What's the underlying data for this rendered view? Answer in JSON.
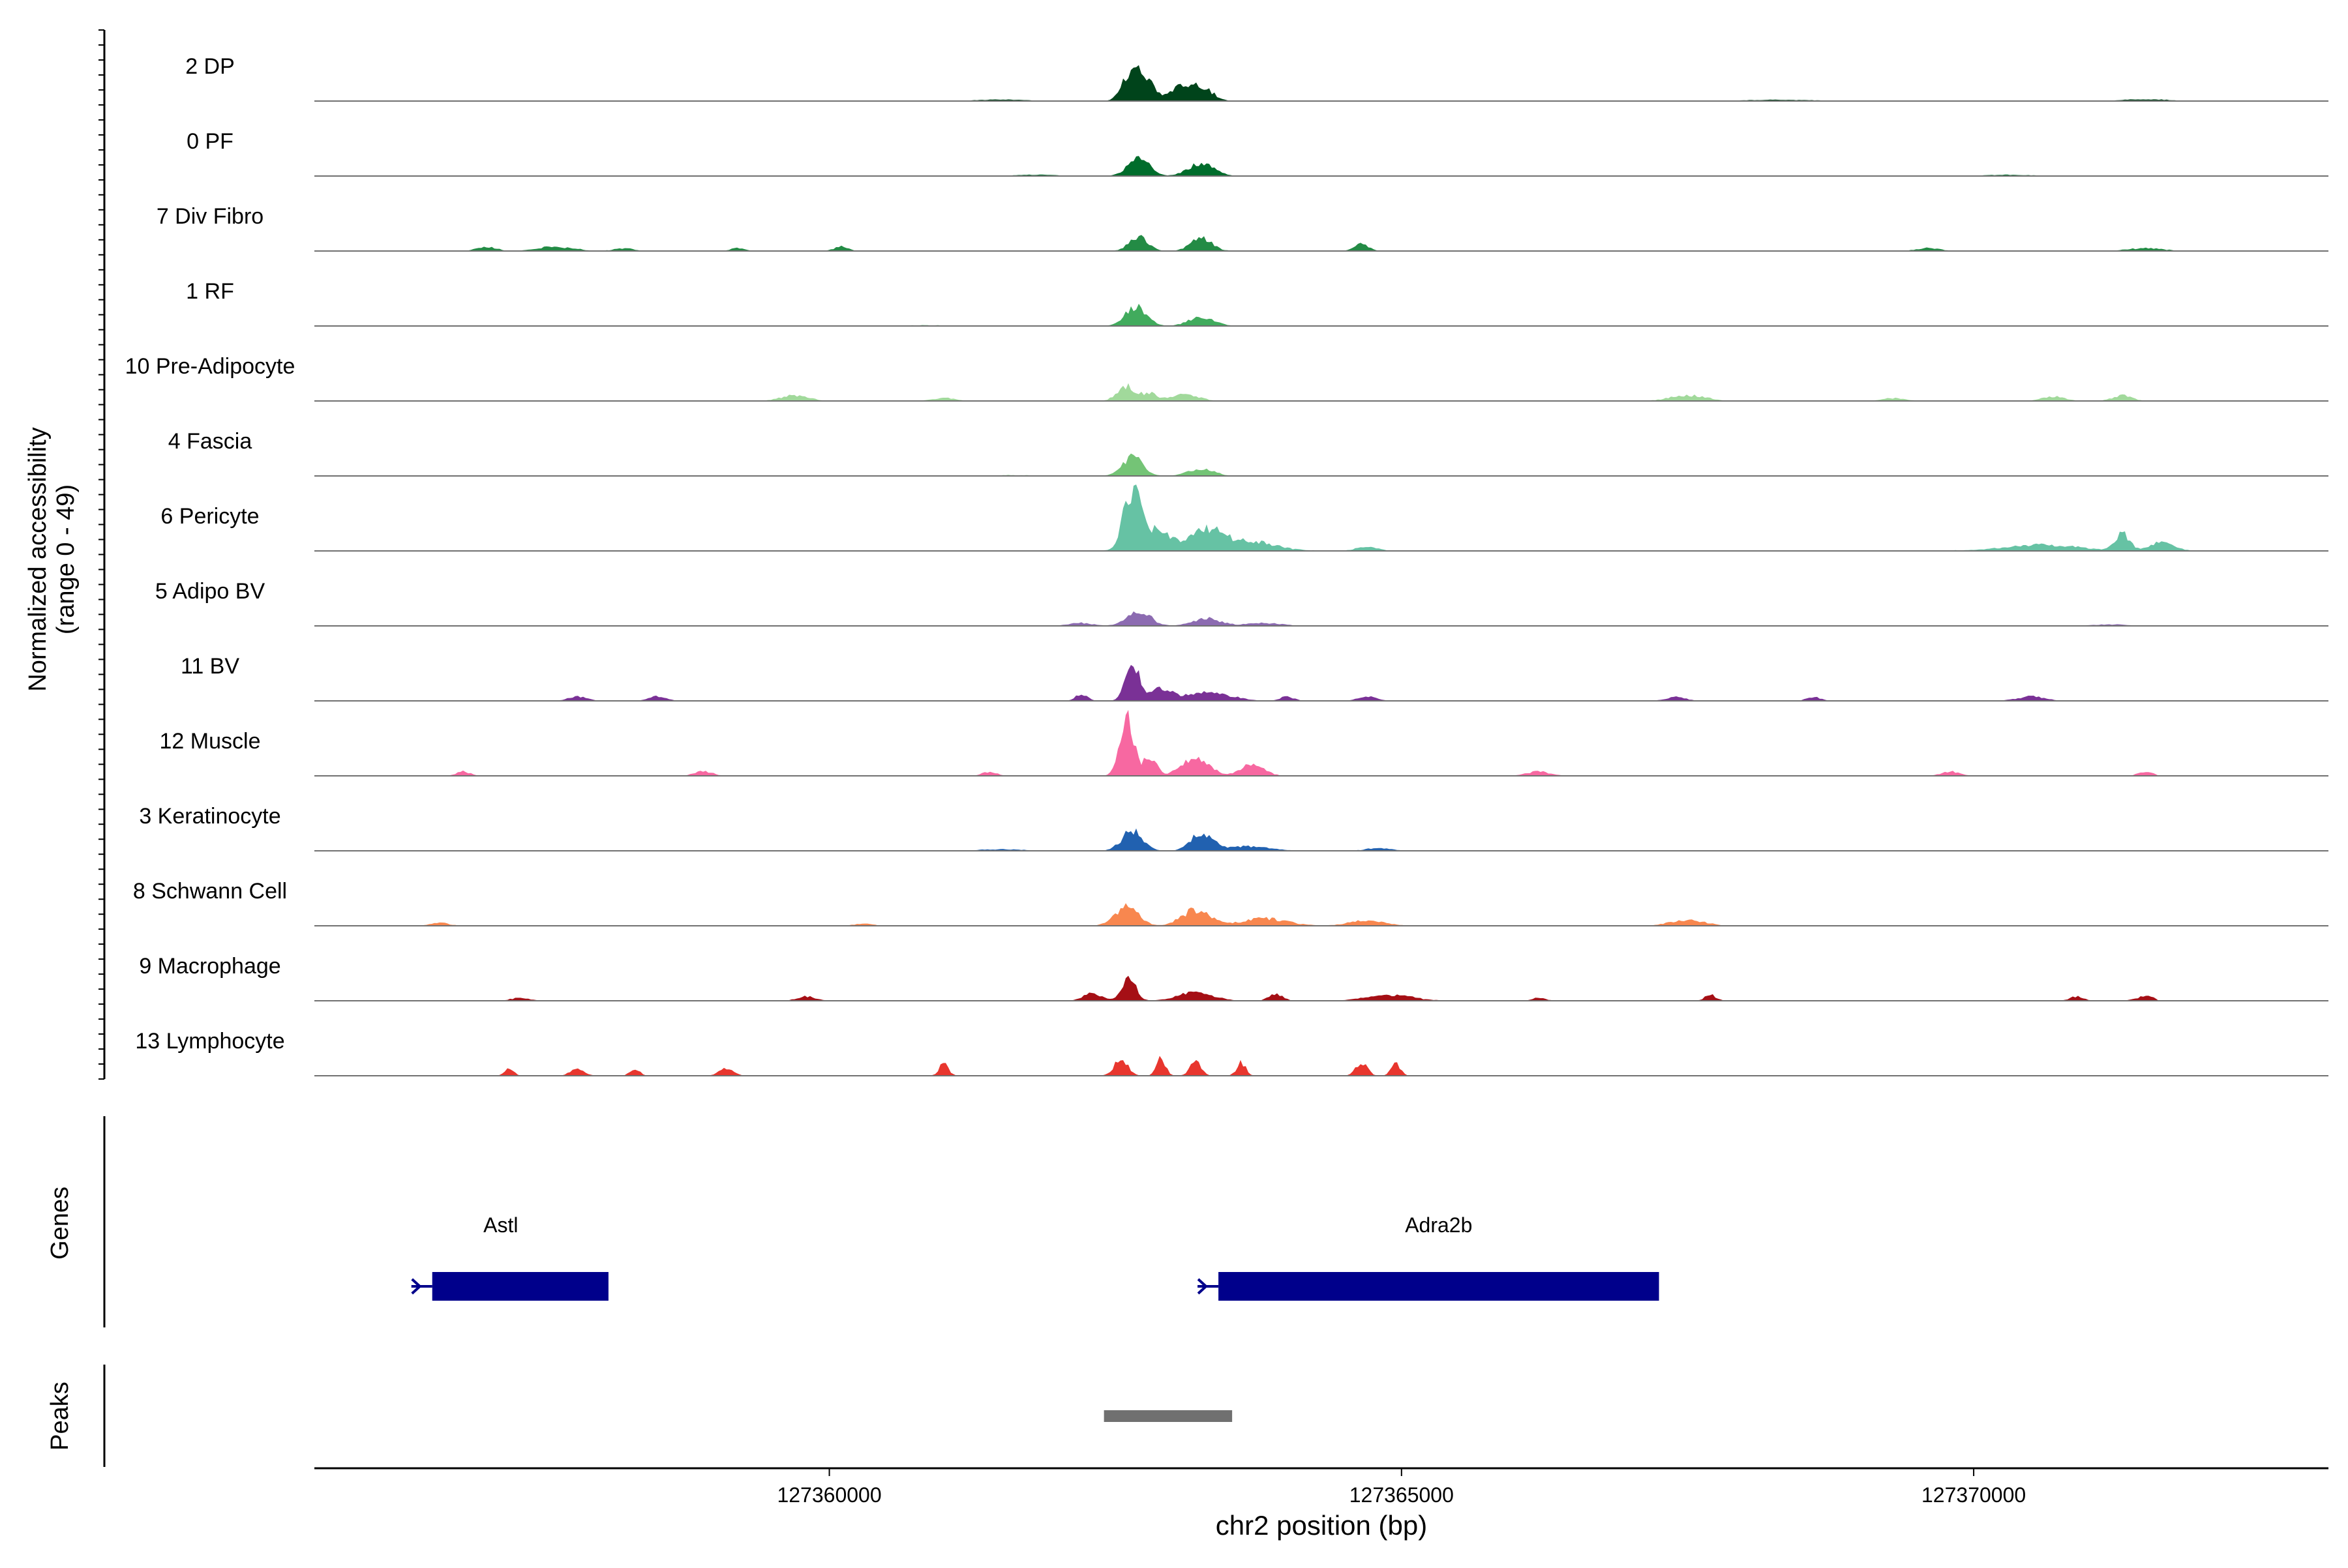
{
  "chart_data": {
    "type": "area",
    "title": "",
    "ylabel_line1": "Normalized accessibility",
    "ylabel_line2": "(range 0 - 49)",
    "yrange": [
      0,
      49
    ],
    "xlabel": "chr2 position (bp)",
    "xlim": [
      127355500,
      127373100
    ],
    "xticks": [
      127360000,
      127365000,
      127370000
    ],
    "xtick_labels": [
      "127360000",
      "127365000",
      "127370000"
    ],
    "tracks": [
      {
        "name": "2 DP",
        "color": "#00441B",
        "noise": 0.05,
        "dense": true,
        "extent": [
          127356300,
          127372100
        ],
        "peaks": [
          [
            127362620,
            70,
            11
          ],
          [
            127362720,
            90,
            19
          ],
          [
            127363100,
            120,
            10
          ],
          [
            127363280,
            90,
            6
          ],
          [
            127361500,
            200,
            1
          ],
          [
            127368300,
            300,
            0.8
          ],
          [
            127371500,
            200,
            1.2
          ]
        ]
      },
      {
        "name": "0 PF",
        "color": "#006D2C",
        "noise": 0.04,
        "dense": true,
        "extent": [
          127356300,
          127372100
        ],
        "peaks": [
          [
            127362700,
            90,
            13
          ],
          [
            127363250,
            110,
            9
          ],
          [
            127361800,
            200,
            0.8
          ],
          [
            127370300,
            200,
            0.8
          ]
        ]
      },
      {
        "name": "7 Div Fibro",
        "color": "#238B45",
        "noise": 0.4,
        "dense": false,
        "extent": [
          127356300,
          127372100
        ],
        "peaks": [
          [
            127362700,
            80,
            10
          ],
          [
            127363250,
            90,
            9
          ],
          [
            127357000,
            80,
            3
          ],
          [
            127357600,
            150,
            3
          ],
          [
            127358200,
            80,
            2
          ],
          [
            127364650,
            60,
            5
          ],
          [
            127359200,
            60,
            2
          ],
          [
            127360100,
            60,
            3
          ],
          [
            127369600,
            100,
            2
          ],
          [
            127371500,
            150,
            2
          ]
        ]
      },
      {
        "name": "1 RF",
        "color": "#41AB5D",
        "noise": 0.05,
        "dense": true,
        "extent": [
          127356300,
          127372100
        ],
        "peaks": [
          [
            127362680,
            90,
            14
          ],
          [
            127363250,
            110,
            6
          ],
          [
            127360800,
            200,
            0.5
          ]
        ]
      },
      {
        "name": "10 Pre-Adipocyte",
        "color": "#A1D99B",
        "noise": 0.35,
        "dense": false,
        "extent": [
          127359300,
          127372400
        ],
        "peaks": [
          [
            127362600,
            80,
            10
          ],
          [
            127362800,
            60,
            5
          ],
          [
            127363100,
            120,
            5
          ],
          [
            127359700,
            120,
            4
          ],
          [
            127361000,
            100,
            2
          ],
          [
            127367500,
            150,
            4
          ],
          [
            127370700,
            100,
            3
          ],
          [
            127371300,
            80,
            4
          ],
          [
            127369300,
            100,
            2
          ]
        ]
      },
      {
        "name": "4 Fascia",
        "color": "#74C476",
        "noise": 0.05,
        "dense": true,
        "extent": [
          127356300,
          127372100
        ],
        "peaks": [
          [
            127362650,
            90,
            13
          ],
          [
            127363250,
            110,
            5
          ],
          [
            127361600,
            200,
            0.5
          ]
        ]
      },
      {
        "name": "6 Pericyte",
        "color": "#66C2A4",
        "noise": 0.25,
        "dense": true,
        "extent": [
          127356300,
          127372100
        ],
        "peaks": [
          [
            127362640,
            70,
            40
          ],
          [
            127362850,
            120,
            14
          ],
          [
            127363300,
            150,
            14
          ],
          [
            127363700,
            200,
            6
          ],
          [
            127364700,
            80,
            3
          ],
          [
            127370600,
            300,
            4
          ],
          [
            127371300,
            60,
            12
          ],
          [
            127371650,
            100,
            6
          ]
        ]
      },
      {
        "name": "5 Adipo BV",
        "color": "#8C6BB1",
        "noise": 0.05,
        "dense": true,
        "extent": [
          127356300,
          127371800
        ],
        "peaks": [
          [
            127362700,
            100,
            11
          ],
          [
            127363300,
            120,
            5
          ],
          [
            127362200,
            100,
            2
          ],
          [
            127363800,
            150,
            2
          ],
          [
            127371200,
            150,
            1
          ]
        ]
      },
      {
        "name": "11 BV",
        "color": "#7A3196",
        "noise": 0.25,
        "dense": false,
        "extent": [
          127357500,
          127370800
        ],
        "peaks": [
          [
            127362650,
            60,
            26
          ],
          [
            127362900,
            80,
            8
          ],
          [
            127363300,
            200,
            6
          ],
          [
            127362200,
            50,
            5
          ],
          [
            127364000,
            60,
            3
          ],
          [
            127364700,
            80,
            3
          ],
          [
            127357800,
            80,
            3
          ],
          [
            127358500,
            80,
            3
          ],
          [
            127367400,
            80,
            3
          ],
          [
            127368600,
            60,
            3
          ],
          [
            127370500,
            120,
            3
          ]
        ]
      },
      {
        "name": "12 Muscle",
        "color": "#F768A1",
        "noise": 0.2,
        "dense": false,
        "extent": [
          127356500,
          127371600
        ],
        "peaks": [
          [
            127362600,
            60,
            40
          ],
          [
            127362800,
            60,
            12
          ],
          [
            127363200,
            120,
            12
          ],
          [
            127363700,
            100,
            8
          ],
          [
            127356800,
            60,
            3
          ],
          [
            127358900,
            80,
            3
          ],
          [
            127361400,
            60,
            3
          ],
          [
            127366200,
            100,
            3
          ],
          [
            127369800,
            80,
            3
          ],
          [
            127371500,
            60,
            3
          ]
        ]
      },
      {
        "name": "3 Keratinocyte",
        "color": "#2161B0",
        "noise": 0.05,
        "dense": true,
        "extent": [
          127356300,
          127372100
        ],
        "peaks": [
          [
            127362650,
            90,
            14
          ],
          [
            127363250,
            90,
            13
          ],
          [
            127363650,
            200,
            3
          ],
          [
            127364800,
            100,
            2
          ],
          [
            127361500,
            200,
            1
          ]
        ]
      },
      {
        "name": "8 Schwann Cell",
        "color": "#F8874F",
        "noise": 0.35,
        "dense": false,
        "extent": [
          127356300,
          127371800
        ],
        "peaks": [
          [
            127362600,
            100,
            14
          ],
          [
            127363200,
            120,
            11
          ],
          [
            127363800,
            200,
            5
          ],
          [
            127364700,
            150,
            4
          ],
          [
            127367500,
            150,
            4
          ],
          [
            127356600,
            80,
            2
          ],
          [
            127360300,
            80,
            1.5
          ]
        ]
      },
      {
        "name": "9 Macrophage",
        "color": "#A50F15",
        "noise": 0.25,
        "dense": false,
        "extent": [
          127356300,
          127371600
        ],
        "peaks": [
          [
            127362620,
            60,
            15
          ],
          [
            127362300,
            80,
            5
          ],
          [
            127363200,
            150,
            6
          ],
          [
            127363900,
            60,
            5
          ],
          [
            127364900,
            200,
            4
          ],
          [
            127357300,
            80,
            2
          ],
          [
            127359800,
            80,
            3
          ],
          [
            127366200,
            60,
            2
          ],
          [
            127367700,
            50,
            4
          ],
          [
            127370900,
            60,
            3
          ],
          [
            127371500,
            80,
            3
          ]
        ]
      },
      {
        "name": "13 Lymphocyte",
        "color": "#E8362E",
        "noise": 0.0,
        "dense": false,
        "extent": [
          127356300,
          127371600
        ],
        "peaks": [
          [
            127362550,
            60,
            12
          ],
          [
            127362900,
            40,
            12
          ],
          [
            127363200,
            50,
            10
          ],
          [
            127363600,
            40,
            9
          ],
          [
            127364650,
            50,
            9
          ],
          [
            127364950,
            40,
            9
          ],
          [
            127357200,
            40,
            5
          ],
          [
            127357800,
            60,
            5
          ],
          [
            127358300,
            40,
            5
          ],
          [
            127359100,
            60,
            5
          ],
          [
            127361000,
            40,
            9
          ]
        ]
      }
    ],
    "genes": [
      {
        "name": "Astl",
        "start": 127356530,
        "end": 127358070,
        "strand": "-",
        "color": "#00008B"
      },
      {
        "name": "Adra2b",
        "start": 127363400,
        "end": 127367250,
        "strand": "-",
        "color": "#00008B"
      }
    ],
    "genes_label": "Genes",
    "peaks_label": "Peaks",
    "peaks_regions": [
      {
        "start": 127362400,
        "end": 127363520,
        "color": "#707070"
      }
    ]
  }
}
